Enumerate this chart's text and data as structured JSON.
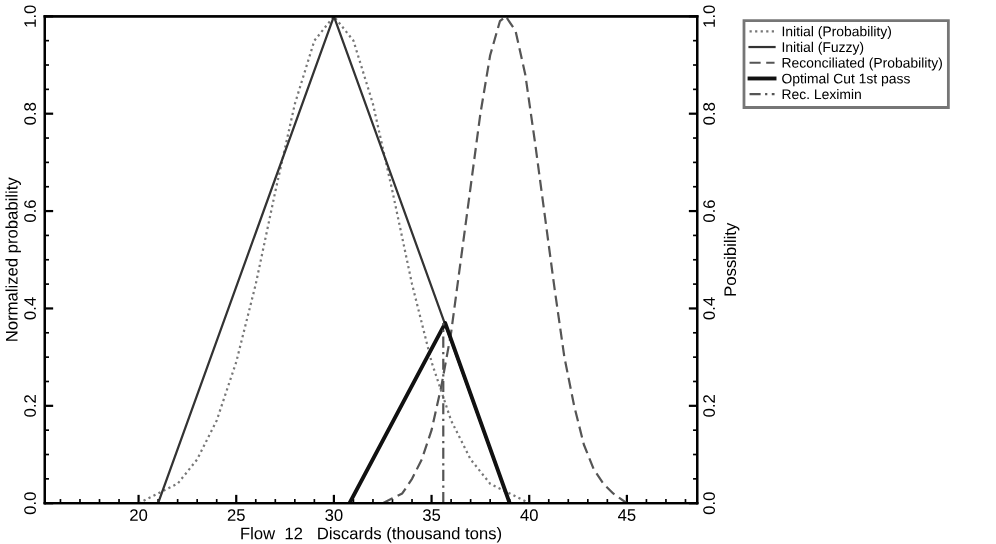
{
  "chart_data": {
    "type": "line",
    "xlabel": "Flow  12   Discards (thousand tons)",
    "ylabel": "Normalized probability",
    "y2label": "Possibility",
    "xlim": [
      15.2,
      48.6
    ],
    "xticks": [
      20,
      25,
      30,
      35,
      40,
      45
    ],
    "ylim": [
      0,
      1
    ],
    "yticks": [
      {
        "value": 0,
        "label": "0.0"
      },
      {
        "value": 0.2,
        "label": "0.2"
      },
      {
        "value": 0.4,
        "label": "0.4"
      },
      {
        "value": 0.6,
        "label": "0.6"
      },
      {
        "value": 0.8,
        "label": "0.8"
      },
      {
        "value": 1,
        "label": "1.0"
      }
    ],
    "y2lim": [
      0,
      1
    ],
    "y2ticks": [
      {
        "value": 0,
        "label": "0.0"
      },
      {
        "value": 0.2,
        "label": "0.2"
      },
      {
        "value": 0.4,
        "label": "0.4"
      },
      {
        "value": 0.6,
        "label": "0.6"
      },
      {
        "value": 0.8,
        "label": "0.8"
      },
      {
        "value": 1,
        "label": "1.0"
      }
    ],
    "grid": false,
    "legend": "top right",
    "marker": "none",
    "series": [
      {
        "name": "Initial (Probability)",
        "color": "#777777",
        "line_style": "dotted",
        "x": [
          20,
          21,
          22,
          23,
          24,
          25,
          26,
          27,
          28,
          29,
          30,
          31,
          32,
          33,
          34,
          35,
          36,
          37,
          38,
          39,
          40
        ],
        "values": [
          0,
          0.02,
          0.04,
          0.09,
          0.17,
          0.29,
          0.45,
          0.64,
          0.82,
          0.95,
          1,
          0.95,
          0.82,
          0.64,
          0.45,
          0.29,
          0.17,
          0.09,
          0.04,
          0.02,
          0
        ]
      },
      {
        "name": "Initial (Fuzzy)",
        "color": "#333333",
        "line_style": "solid",
        "x": [
          21,
          30,
          39
        ],
        "values": [
          0,
          1,
          0
        ]
      },
      {
        "name": "Reconciliated (Probability)",
        "color": "#555555",
        "line_style": "dashed",
        "x": [
          32.5,
          33,
          33.5,
          34,
          34.5,
          35,
          35.5,
          36,
          36.5,
          37,
          37.5,
          38,
          38.5,
          38.8,
          39.3,
          39.8,
          40.3,
          40.8,
          41.3,
          41.8,
          42.3,
          42.8,
          43.3,
          43.8,
          44.3,
          45
        ],
        "values": [
          0,
          0.01,
          0.02,
          0.05,
          0.09,
          0.15,
          0.24,
          0.35,
          0.5,
          0.65,
          0.8,
          0.92,
          0.99,
          1,
          0.97,
          0.88,
          0.74,
          0.59,
          0.44,
          0.3,
          0.2,
          0.12,
          0.07,
          0.04,
          0.02,
          0
        ]
      },
      {
        "name": "Optimal Cut 1st pass",
        "color": "#111111",
        "line_style": "solid",
        "x": [
          30.8,
          35.7,
          39
        ],
        "values": [
          0,
          0.37,
          0
        ]
      },
      {
        "name": "Rec. Leximin",
        "color": "#555555",
        "line_style": "dashdot",
        "x": [
          35.6,
          35.6
        ],
        "values": [
          0,
          0.37
        ]
      }
    ]
  }
}
